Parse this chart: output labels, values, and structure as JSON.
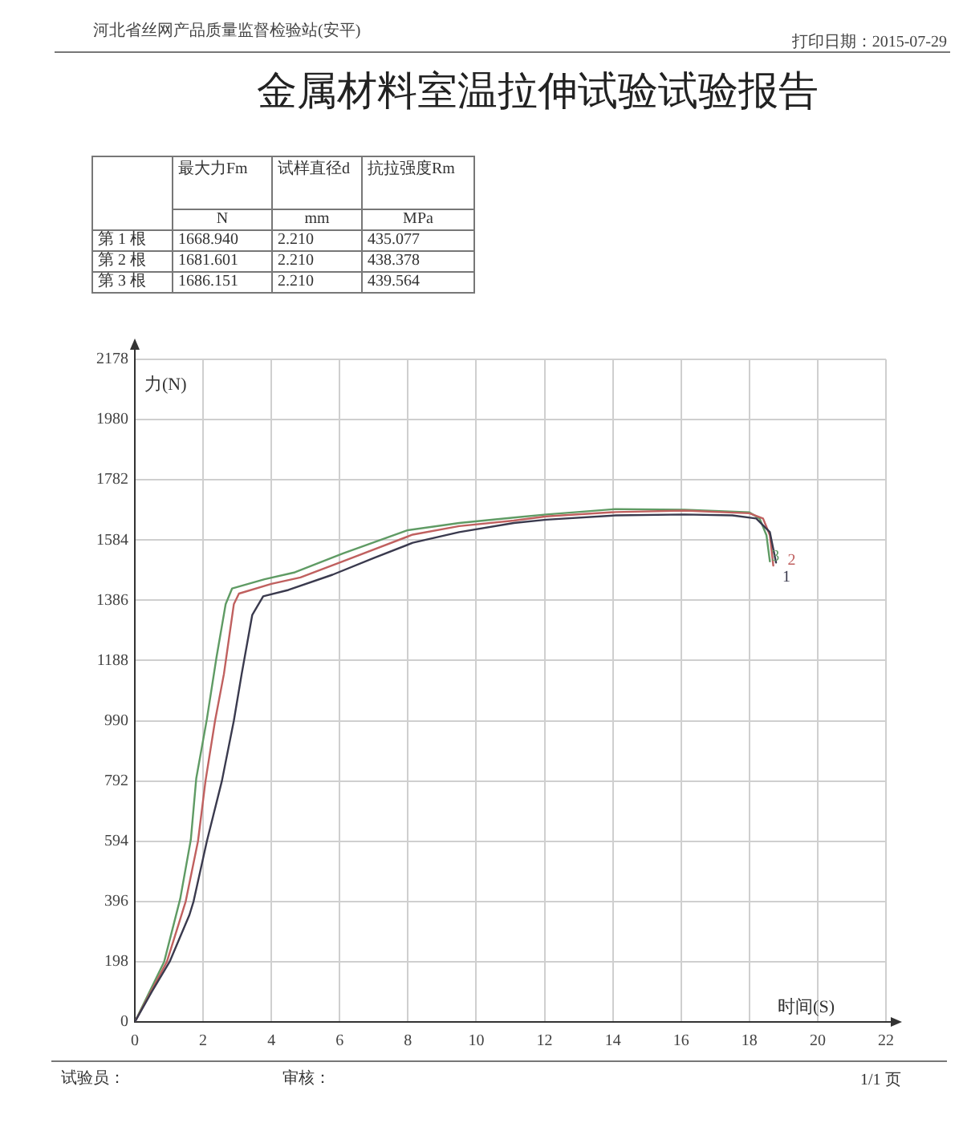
{
  "chart_data": {
    "type": "line",
    "title": "金属材料室温拉伸试验试验报告",
    "xlabel": "时间(S)",
    "ylabel": "力(N)",
    "annotations": [
      "河北省丝网产品质量监督检验站(安平)",
      "打印日期：2015-07-29",
      "最大力Fm",
      "试样直径d",
      "抗拉强度Rm",
      "N",
      "mm",
      "MPa",
      "第 1 根",
      "1668.940",
      "2.210",
      "435.077",
      "第 2 根",
      "1681.601",
      "2.210",
      "438.378",
      "第 3 根",
      "1686.151",
      "2.210",
      "439.564",
      "试验员：",
      "审核：",
      "1/1 页"
    ],
    "series": [
      {
        "name": "1",
        "color": "#3a3a4e",
        "x": [
          0,
          0.5,
          1.02,
          1.6,
          1.72,
          2.11,
          2.55,
          2.9,
          3.13,
          3.44,
          3.76,
          4.5,
          5.79,
          7.0,
          8.14,
          9.5,
          11.1,
          12.05,
          14.08,
          16.1,
          17.5,
          18.2,
          18.6,
          18.78
        ],
        "values": [
          0,
          100,
          198,
          352,
          396,
          594,
          792,
          990,
          1144,
          1338,
          1399,
          1420,
          1470,
          1525,
          1575,
          1610,
          1640,
          1651,
          1665,
          1668,
          1665,
          1655,
          1610,
          1510
        ]
      },
      {
        "name": "2",
        "color": "#c0605f",
        "x": [
          0,
          0.94,
          1.49,
          1.85,
          2.07,
          2.35,
          2.61,
          2.9,
          3.05,
          4.0,
          4.85,
          6.09,
          8.14,
          9.5,
          11.1,
          12.05,
          14.08,
          16.1,
          18.0,
          18.4,
          18.6,
          18.7
        ],
        "values": [
          0,
          198,
          396,
          594,
          792,
          990,
          1144,
          1373,
          1408,
          1440,
          1461,
          1514,
          1602,
          1630,
          1648,
          1662,
          1676,
          1681,
          1672,
          1655,
          1600,
          1500
        ]
      },
      {
        "name": "3",
        "color": "#5f9b64",
        "x": [
          0,
          0.86,
          1.33,
          1.64,
          1.8,
          2.11,
          2.39,
          2.66,
          2.85,
          3.8,
          4.69,
          6.1,
          7.98,
          9.5,
          11.1,
          12.05,
          14.08,
          16.1,
          18.0,
          18.3,
          18.5,
          18.6
        ],
        "values": [
          0,
          198,
          405,
          599,
          801,
          995,
          1197,
          1373,
          1425,
          1455,
          1478,
          1540,
          1616,
          1640,
          1658,
          1668,
          1686,
          1684,
          1675,
          1655,
          1600,
          1514
        ]
      }
    ],
    "xlim": [
      0,
      22
    ],
    "xticks": [
      0,
      2,
      4,
      6,
      8,
      10,
      12,
      14,
      16,
      18,
      20,
      22
    ],
    "ylim": [
      0,
      2178
    ],
    "yticks": [
      0,
      198,
      396,
      594,
      792,
      990,
      1188,
      1386,
      1584,
      1782,
      1980,
      2178
    ],
    "grid": true,
    "marker": "none",
    "line_style": "solid"
  }
}
